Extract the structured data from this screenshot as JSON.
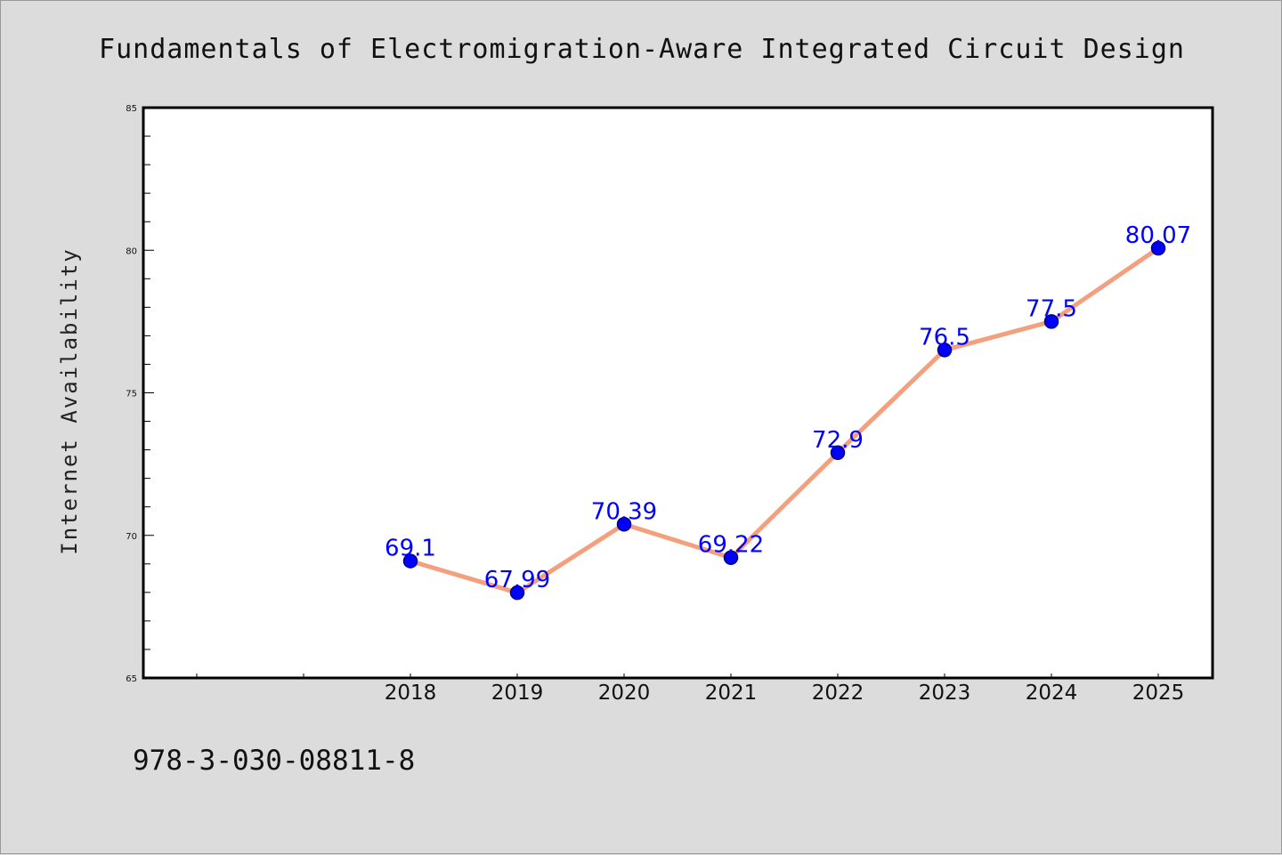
{
  "chart_data": {
    "type": "line",
    "title": "Fundamentals of Electromigration-Aware Integrated Circuit Design",
    "xlabel": "",
    "ylabel": "Internet Availability",
    "footer": "978-3-030-08811-8",
    "categories": [
      "2018",
      "2019",
      "2020",
      "2021",
      "2022",
      "2023",
      "2024",
      "2025"
    ],
    "values": [
      69.1,
      67.99,
      70.39,
      69.22,
      72.9,
      76.5,
      77.5,
      80.07
    ],
    "value_labels": [
      "69.1",
      "67.99",
      "70.39",
      "69.22",
      "72.9",
      "76.5",
      "77.5",
      "80.07"
    ],
    "ylim": [
      65,
      85
    ],
    "yticks": [
      "65",
      "70",
      "75",
      "80",
      "85"
    ],
    "grid": false,
    "legend": "none",
    "colors": {
      "line": "#f4a07e",
      "marker": "#0000ff",
      "marker_edge": "#000080",
      "data_label": "#0000ff",
      "background": "#dcdcdc",
      "plot_background": "#ffffff"
    }
  }
}
